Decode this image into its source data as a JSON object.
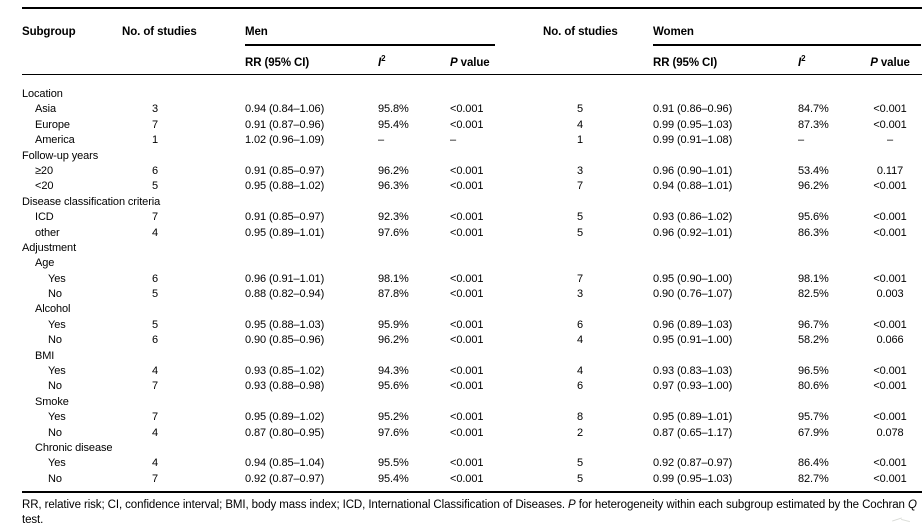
{
  "table": {
    "header": {
      "subgroup": "Subgroup",
      "no_of_studies_men": "No. of studies",
      "men": "Men",
      "no_of_studies_women": "No. of studies",
      "women": "Women",
      "rr_men": "RR (95% CI)",
      "rr_women": "RR (95% CI)",
      "i2_base": "I",
      "i2_sup": "2",
      "p_italic": "P",
      "p_rest": " value"
    },
    "rows": [
      {
        "label": "Location",
        "level": 0
      },
      {
        "label": "Asia",
        "level": 1,
        "cells": [
          "3",
          "0.94 (0.84–1.06)",
          "95.8%",
          "<0.001",
          "5",
          "0.91 (0.86–0.96)",
          "84.7%",
          "<0.001"
        ]
      },
      {
        "label": "Europe",
        "level": 1,
        "cells": [
          "7",
          "0.91 (0.87–0.96)",
          "95.4%",
          "<0.001",
          "4",
          "0.99 (0.95–1.03)",
          "87.3%",
          "<0.001"
        ]
      },
      {
        "label": "America",
        "level": 1,
        "cells": [
          "1",
          "1.02 (0.96–1.09)",
          "–",
          "–",
          "1",
          "0.99 (0.91–1.08)",
          "–",
          "–"
        ]
      },
      {
        "label": "Follow-up years",
        "level": 0
      },
      {
        "label": "≥20",
        "level": 1,
        "cells": [
          "6",
          "0.91 (0.85–0.97)",
          "96.2%",
          "<0.001",
          "3",
          "0.96 (0.90–1.01)",
          "53.4%",
          "0.117"
        ]
      },
      {
        "label": "<20",
        "level": 1,
        "cells": [
          "5",
          "0.95 (0.88–1.02)",
          "96.3%",
          "<0.001",
          "7",
          "0.94 (0.88–1.01)",
          "96.2%",
          "<0.001"
        ]
      },
      {
        "label": "Disease classification criteria",
        "level": 0
      },
      {
        "label": "ICD",
        "level": 1,
        "cells": [
          "7",
          "0.91 (0.85–0.97)",
          "92.3%",
          "<0.001",
          "5",
          "0.93 (0.86–1.02)",
          "95.6%",
          "<0.001"
        ]
      },
      {
        "label": "other",
        "level": 1,
        "cells": [
          "4",
          "0.95 (0.89–1.01)",
          "97.6%",
          "<0.001",
          "5",
          "0.96 (0.92–1.01)",
          "86.3%",
          "<0.001"
        ]
      },
      {
        "label": "Adjustment",
        "level": 0
      },
      {
        "label": "Age",
        "level": 1
      },
      {
        "label": "Yes",
        "level": 2,
        "cells": [
          "6",
          "0.96 (0.91–1.01)",
          "98.1%",
          "<0.001",
          "7",
          "0.95 (0.90–1.00)",
          "98.1%",
          "<0.001"
        ]
      },
      {
        "label": "No",
        "level": 2,
        "cells": [
          "5",
          "0.88 (0.82–0.94)",
          "87.8%",
          "<0.001",
          "3",
          "0.90 (0.76–1.07)",
          "82.5%",
          "0.003"
        ]
      },
      {
        "label": "Alcohol",
        "level": 1
      },
      {
        "label": "Yes",
        "level": 2,
        "cells": [
          "5",
          "0.95 (0.88–1.03)",
          "95.9%",
          "<0.001",
          "6",
          "0.96 (0.89–1.03)",
          "96.7%",
          "<0.001"
        ]
      },
      {
        "label": "No",
        "level": 2,
        "cells": [
          "6",
          "0.90 (0.85–0.96)",
          "96.2%",
          "<0.001",
          "4",
          "0.95 (0.91–1.00)",
          "58.2%",
          "0.066"
        ]
      },
      {
        "label": "BMI",
        "level": 1
      },
      {
        "label": "Yes",
        "level": 2,
        "cells": [
          "4",
          "0.93 (0.85–1.02)",
          "94.3%",
          "<0.001",
          "4",
          "0.93 (0.83–1.03)",
          "96.5%",
          "<0.001"
        ]
      },
      {
        "label": "No",
        "level": 2,
        "cells": [
          "7",
          "0.93 (0.88–0.98)",
          "95.6%",
          "<0.001",
          "6",
          "0.97 (0.93–1.00)",
          "80.6%",
          "<0.001"
        ]
      },
      {
        "label": "Smoke",
        "level": 1
      },
      {
        "label": "Yes",
        "level": 2,
        "cells": [
          "7",
          "0.95 (0.89–1.02)",
          "95.2%",
          "<0.001",
          "8",
          "0.95 (0.89–1.01)",
          "95.7%",
          "<0.001"
        ]
      },
      {
        "label": "No",
        "level": 2,
        "cells": [
          "4",
          "0.87 (0.80–0.95)",
          "97.6%",
          "<0.001",
          "2",
          "0.87 (0.65–1.17)",
          "67.9%",
          "0.078"
        ]
      },
      {
        "label": "Chronic disease",
        "level": 1
      },
      {
        "label": "Yes",
        "level": 2,
        "cells": [
          "4",
          "0.94 (0.85–1.04)",
          "95.5%",
          "<0.001",
          "5",
          "0.92 (0.87–0.97)",
          "86.4%",
          "<0.001"
        ]
      },
      {
        "label": "No",
        "level": 2,
        "cells": [
          "7",
          "0.92 (0.87–0.97)",
          "95.4%",
          "<0.001",
          "5",
          "0.99 (0.95–1.03)",
          "82.7%",
          "<0.001"
        ]
      }
    ],
    "footnote_segments": [
      {
        "text": "RR, relative risk; CI, confidence interval; BMI, body mass index; ICD, International Classification of Diseases. ",
        "italic": false
      },
      {
        "text": "P",
        "italic": true
      },
      {
        "text": " for heterogeneity within each subgroup estimated by the Cochran ",
        "italic": false
      },
      {
        "text": "Q",
        "italic": true
      },
      {
        "text": " test.",
        "italic": false
      }
    ]
  }
}
